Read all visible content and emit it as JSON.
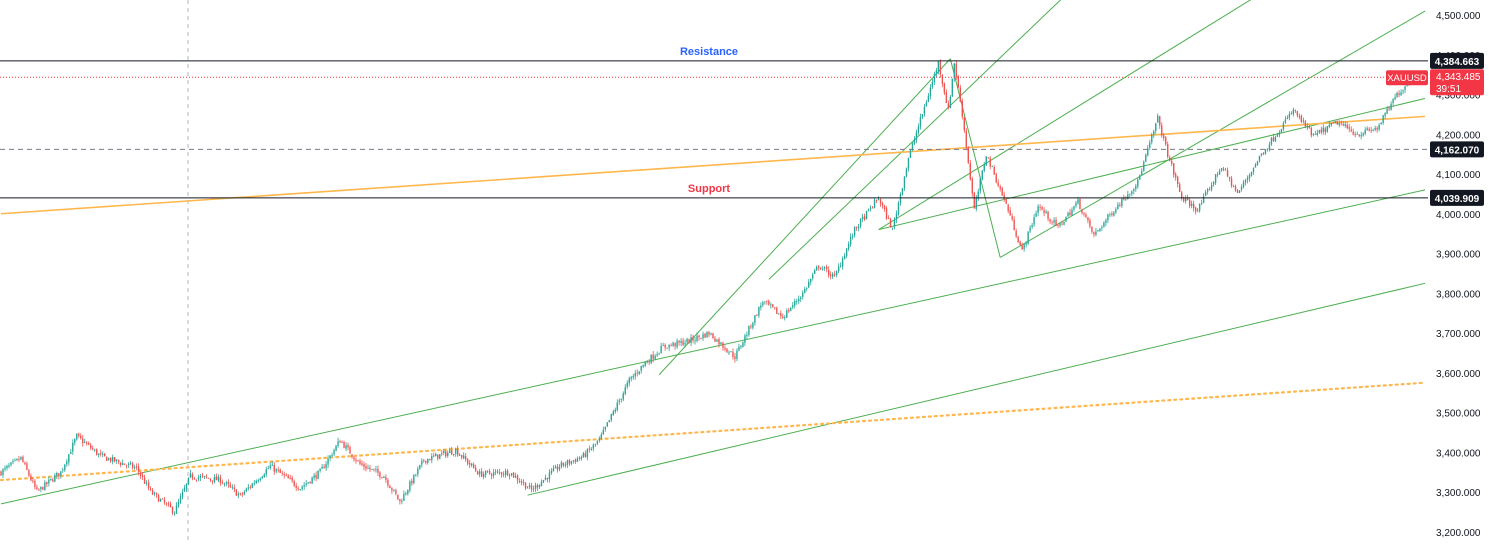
{
  "symbol": "XAUUSD",
  "countdown": "39:51",
  "colors": {
    "up": "#26a69a",
    "down": "#ef5350",
    "trendline": "#4caf50",
    "orange": "#ffb74d",
    "resistance_label": "#2962ff",
    "support_label": "#f23645",
    "price_tag": "#f23645",
    "level_tag": "#131722"
  },
  "chart_data": {
    "type": "candlestick",
    "title": "",
    "xlabel": "",
    "ylabel": "",
    "ylim": [
      3180,
      4530
    ],
    "grid": false,
    "y_ticks": [
      "3,200.000",
      "3,300.000",
      "3,400.000",
      "3,500.000",
      "3,600.000",
      "3,700.000",
      "3,800.000",
      "3,900.000",
      "4,000.000",
      "4,100.000",
      "4,200.000",
      "4,300.000",
      "4,400.000",
      "4,500.000"
    ],
    "y_tick_values": [
      3200,
      3300,
      3400,
      3500,
      3600,
      3700,
      3800,
      3900,
      4000,
      4100,
      4200,
      4300,
      4400,
      4500
    ],
    "last_price": 4343.485,
    "last_price_label": "4,343.485",
    "levels": [
      {
        "name": "Resistance",
        "value": 4384.663,
        "label": "4,384.663",
        "style": "solid",
        "color": "#131722",
        "caption": "Resistance",
        "caption_color": "#2962ff",
        "caption_x_index": 355
      },
      {
        "name": "Support",
        "value": 4039.909,
        "label": "4,039.909",
        "style": "solid",
        "color": "#131722",
        "caption": "Support",
        "caption_color": "#f23645",
        "caption_x_index": 355
      },
      {
        "name": "mid",
        "value": 4162.07,
        "label": "4,162.070",
        "style": "dashed",
        "color": "#787b86",
        "caption": "",
        "caption_color": "",
        "caption_x_index": 0
      }
    ],
    "price_path": [
      {
        "i": 0,
        "p": 3350
      },
      {
        "i": 10,
        "p": 3385
      },
      {
        "i": 18,
        "p": 3300
      },
      {
        "i": 30,
        "p": 3350
      },
      {
        "i": 38,
        "p": 3440
      },
      {
        "i": 50,
        "p": 3390
      },
      {
        "i": 68,
        "p": 3360
      },
      {
        "i": 75,
        "p": 3300
      },
      {
        "i": 87,
        "p": 3250
      },
      {
        "i": 95,
        "p": 3340
      },
      {
        "i": 110,
        "p": 3330
      },
      {
        "i": 120,
        "p": 3290
      },
      {
        "i": 135,
        "p": 3365
      },
      {
        "i": 150,
        "p": 3310
      },
      {
        "i": 160,
        "p": 3350
      },
      {
        "i": 170,
        "p": 3430
      },
      {
        "i": 180,
        "p": 3370
      },
      {
        "i": 192,
        "p": 3340
      },
      {
        "i": 200,
        "p": 3275
      },
      {
        "i": 212,
        "p": 3380
      },
      {
        "i": 228,
        "p": 3405
      },
      {
        "i": 240,
        "p": 3345
      },
      {
        "i": 255,
        "p": 3350
      },
      {
        "i": 266,
        "p": 3305
      },
      {
        "i": 280,
        "p": 3365
      },
      {
        "i": 292,
        "p": 3390
      },
      {
        "i": 300,
        "p": 3430
      },
      {
        "i": 315,
        "p": 3580
      },
      {
        "i": 322,
        "p": 3620
      },
      {
        "i": 332,
        "p": 3665
      },
      {
        "i": 345,
        "p": 3680
      },
      {
        "i": 355,
        "p": 3700
      },
      {
        "i": 368,
        "p": 3640
      },
      {
        "i": 382,
        "p": 3780
      },
      {
        "i": 392,
        "p": 3740
      },
      {
        "i": 402,
        "p": 3800
      },
      {
        "i": 410,
        "p": 3870
      },
      {
        "i": 418,
        "p": 3840
      },
      {
        "i": 428,
        "p": 3960
      },
      {
        "i": 440,
        "p": 4040
      },
      {
        "i": 447,
        "p": 3960
      },
      {
        "i": 455,
        "p": 4140
      },
      {
        "i": 465,
        "p": 4300
      },
      {
        "i": 470,
        "p": 4380
      },
      {
        "i": 475,
        "p": 4260
      },
      {
        "i": 478,
        "p": 4380
      },
      {
        "i": 482,
        "p": 4250
      },
      {
        "i": 488,
        "p": 4010
      },
      {
        "i": 494,
        "p": 4150
      },
      {
        "i": 505,
        "p": 4010
      },
      {
        "i": 512,
        "p": 3905
      },
      {
        "i": 520,
        "p": 4020
      },
      {
        "i": 530,
        "p": 3965
      },
      {
        "i": 540,
        "p": 4030
      },
      {
        "i": 548,
        "p": 3945
      },
      {
        "i": 558,
        "p": 4010
      },
      {
        "i": 570,
        "p": 4080
      },
      {
        "i": 580,
        "p": 4240
      },
      {
        "i": 585,
        "p": 4150
      },
      {
        "i": 592,
        "p": 4040
      },
      {
        "i": 600,
        "p": 4010
      },
      {
        "i": 612,
        "p": 4120
      },
      {
        "i": 620,
        "p": 4050
      },
      {
        "i": 632,
        "p": 4150
      },
      {
        "i": 648,
        "p": 4260
      },
      {
        "i": 658,
        "p": 4195
      },
      {
        "i": 670,
        "p": 4230
      },
      {
        "i": 680,
        "p": 4200
      },
      {
        "i": 690,
        "p": 4215
      },
      {
        "i": 700,
        "p": 4300
      },
      {
        "i": 708,
        "p": 4343
      }
    ],
    "candle_count": 710,
    "trendlines": [
      {
        "name": "lower-channel-line",
        "style": "solid",
        "color": "#4caf50",
        "x1_index": 0,
        "y1": 3270,
        "x2_index": 714,
        "y2": 4060
      },
      {
        "name": "bottom-channel-line",
        "style": "solid",
        "color": "#4caf50",
        "x1_index": 264,
        "y1": 3292,
        "x2_index": 714,
        "y2": 3825
      },
      {
        "name": "steep-fan-line-1",
        "style": "solid",
        "color": "#4caf50",
        "x1_index": 385,
        "y1": 3835,
        "x2_index": 540,
        "y2": 4580
      },
      {
        "name": "steep-fan-line-2",
        "style": "solid",
        "color": "#4caf50",
        "x1_index": 440,
        "y1": 3960,
        "x2_index": 640,
        "y2": 4580
      },
      {
        "name": "fan-line-from-low",
        "style": "solid",
        "color": "#4caf50",
        "x1_index": 501,
        "y1": 3890,
        "x2_index": 714,
        "y2": 4510
      },
      {
        "name": "mid-rising-line",
        "style": "solid",
        "color": "#4caf50",
        "x1_index": 440,
        "y1": 3960,
        "x2_index": 714,
        "y2": 4290
      },
      {
        "name": "rally-line",
        "style": "solid",
        "color": "#4caf50",
        "x1_index": 330,
        "y1": 3595,
        "x2_index": 476,
        "y2": 4390
      },
      {
        "name": "drop-line",
        "style": "solid",
        "color": "#4caf50",
        "x1_index": 476,
        "y1": 4390,
        "x2_index": 501,
        "y2": 3890
      },
      {
        "name": "orange-upper-line",
        "style": "solid",
        "color": "#ffb74d",
        "x1_index": 0,
        "y1": 4000,
        "x2_index": 714,
        "y2": 4245
      },
      {
        "name": "orange-dotted-line",
        "style": "dotted",
        "color": "#ffb74d",
        "x1_index": 0,
        "y1": 3330,
        "x2_index": 714,
        "y2": 3575
      }
    ]
  }
}
